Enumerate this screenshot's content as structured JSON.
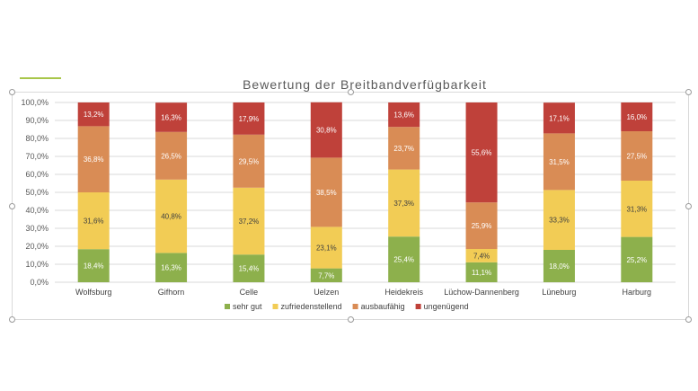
{
  "chart_data": {
    "type": "bar",
    "stacked": true,
    "title": "Bewertung der Breitbandverfügbarkeit",
    "categories": [
      "Wolfsburg",
      "Gifhorn",
      "Celle",
      "Uelzen",
      "Heidekreis",
      "Lüchow-Dannenberg",
      "Lüneburg",
      "Harburg"
    ],
    "series": [
      {
        "name": "sehr gut",
        "color": "#8db04c",
        "label_color": "#ffffff",
        "values": [
          18.4,
          16.3,
          15.4,
          7.7,
          25.4,
          11.1,
          18.0,
          25.2
        ],
        "labels": [
          "18,4%",
          "16,3%",
          "15,4%",
          "7,7%",
          "25,4%",
          "11,1%",
          "18,0%",
          "25,2%"
        ]
      },
      {
        "name": "zufriedenstellend",
        "color": "#f2cc55",
        "label_color": "#404040",
        "values": [
          31.6,
          40.8,
          37.2,
          23.1,
          37.3,
          7.4,
          33.3,
          31.3
        ],
        "labels": [
          "31,6%",
          "40,8%",
          "37,2%",
          "23,1%",
          "37,3%",
          "7,4%",
          "33,3%",
          "31,3%"
        ]
      },
      {
        "name": "ausbaufähig",
        "color": "#d98c55",
        "label_color": "#ffffff",
        "values": [
          36.8,
          26.5,
          29.5,
          38.5,
          23.7,
          25.9,
          31.5,
          27.5
        ],
        "labels": [
          "36,8%",
          "26,5%",
          "29,5%",
          "38,5%",
          "23,7%",
          "25,9%",
          "31,5%",
          "27,5%"
        ]
      },
      {
        "name": "ungenügend",
        "color": "#bf413a",
        "label_color": "#ffffff",
        "values": [
          13.2,
          16.3,
          17.9,
          30.8,
          13.6,
          55.6,
          17.1,
          16.0
        ],
        "labels": [
          "13,2%",
          "16,3%",
          "17,9%",
          "30,8%",
          "13,6%",
          "55,6%",
          "17,1%",
          "16,0%"
        ]
      }
    ],
    "ylim": [
      0,
      100
    ],
    "yticks": [
      0,
      10,
      20,
      30,
      40,
      50,
      60,
      70,
      80,
      90,
      100
    ],
    "ytick_labels": [
      "0,0%",
      "10,0%",
      "20,0%",
      "30,0%",
      "40,0%",
      "50,0%",
      "60,0%",
      "70,0%",
      "80,0%",
      "90,0%",
      "100,0%"
    ],
    "grid": true,
    "legend_position": "bottom"
  }
}
